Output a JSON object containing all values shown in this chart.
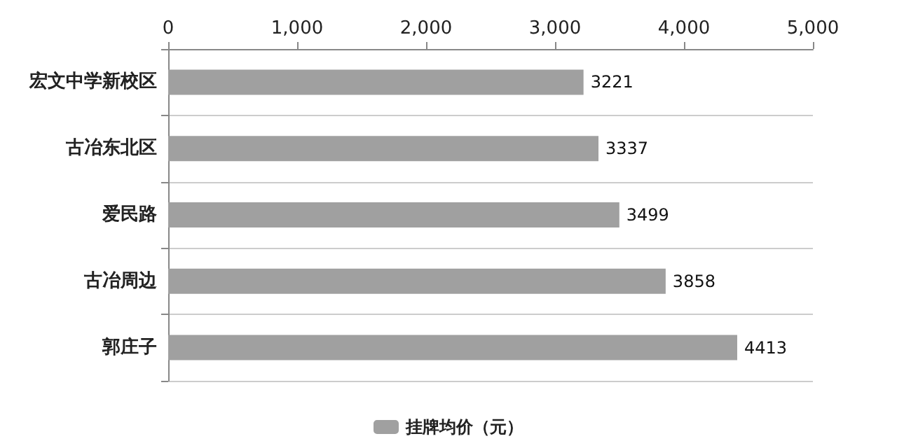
{
  "chart_data": {
    "type": "bar",
    "orientation": "horizontal",
    "categories": [
      "宏文中学新校区",
      "古冶东北区",
      "爱民路",
      "古冶周边",
      "郭庄子"
    ],
    "series": [
      {
        "name": "挂牌均价（元）",
        "color": "#a0a0a0",
        "values": [
          3221,
          3337,
          3499,
          3858,
          4413
        ]
      }
    ],
    "xlim": [
      0,
      5000
    ],
    "xticks": [
      0,
      {
        "value": 1000,
        "label": "1,000"
      },
      {
        "value": 2000,
        "label": "2,000"
      },
      {
        "value": 3000,
        "label": "3,000"
      },
      {
        "value": 4000,
        "label": "4,000"
      },
      {
        "value": 5000,
        "label": "5,000"
      }
    ],
    "data_labels": true,
    "grid": "y",
    "legend": "bottom"
  }
}
